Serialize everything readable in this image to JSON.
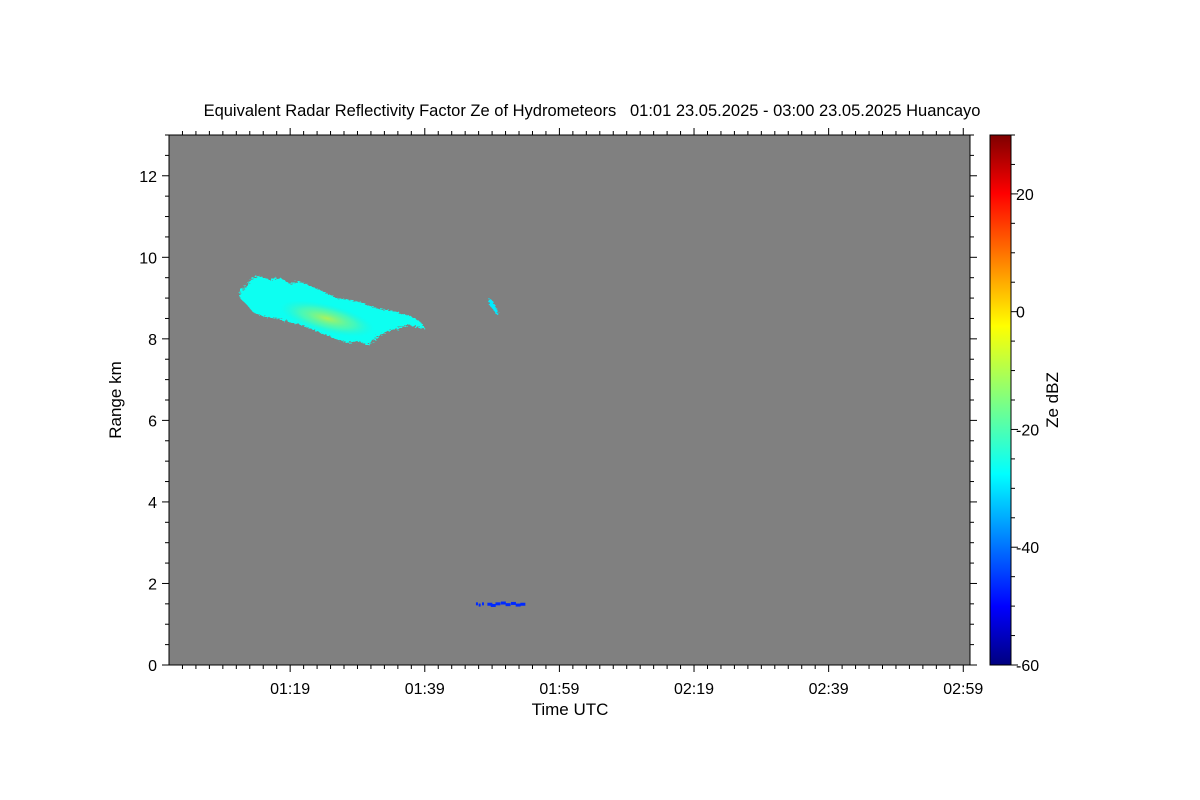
{
  "chart_data": {
    "type": "heatmap",
    "title": "Equivalent Radar Reflectivity Factor Ze of Hydrometeors   01:01 23.05.2025 - 03:00 23.05.2025 Huancayo",
    "xlabel": "Time UTC",
    "ylabel": "Range km",
    "colorbar_label": "Ze dBZ",
    "background_color": "#808080",
    "x_unit": "minutes after 01:00 UTC",
    "xlim": [
      1,
      120
    ],
    "ylim": [
      0,
      13
    ],
    "x_ticks": [
      {
        "label": "01:19",
        "value": 19
      },
      {
        "label": "01:39",
        "value": 39
      },
      {
        "label": "01:59",
        "value": 59
      },
      {
        "label": "02:19",
        "value": 79
      },
      {
        "label": "02:39",
        "value": 99
      },
      {
        "label": "02:59",
        "value": 119
      }
    ],
    "y_ticks": [
      {
        "label": "0",
        "value": 0
      },
      {
        "label": "2",
        "value": 2
      },
      {
        "label": "4",
        "value": 4
      },
      {
        "label": "6",
        "value": 6
      },
      {
        "label": "8",
        "value": 8
      },
      {
        "label": "10",
        "value": 10
      },
      {
        "label": "12",
        "value": 12
      }
    ],
    "colorbar": {
      "range": [
        -60,
        30
      ],
      "ticks": [
        {
          "label": "20",
          "value": 20
        },
        {
          "label": "0",
          "value": 0
        },
        {
          "label": "-20",
          "value": -20
        },
        {
          "label": "-40",
          "value": -40
        },
        {
          "label": "-60",
          "value": -60
        }
      ],
      "colormap": "jet"
    },
    "echo_regions": [
      {
        "name": "ice cloud",
        "time_range": [
          11.5,
          39.0
        ],
        "range_km": [
          7.8,
          9.6
        ],
        "max_ze_dbz": -10,
        "typical_ze_dbz": -25,
        "outline": [
          [
            11.5,
            9.15
          ],
          [
            12.5,
            9.3
          ],
          [
            13.5,
            9.5
          ],
          [
            14.5,
            9.55
          ],
          [
            16,
            9.45
          ],
          [
            17.5,
            9.5
          ],
          [
            19,
            9.35
          ],
          [
            20.5,
            9.4
          ],
          [
            22,
            9.3
          ],
          [
            24,
            9.15
          ],
          [
            26,
            9.0
          ],
          [
            28,
            8.95
          ],
          [
            29.5,
            8.9
          ],
          [
            31,
            8.8
          ],
          [
            32.5,
            8.72
          ],
          [
            34,
            8.7
          ],
          [
            35.5,
            8.62
          ],
          [
            37,
            8.55
          ],
          [
            38.5,
            8.4
          ],
          [
            39,
            8.25
          ],
          [
            38,
            8.28
          ],
          [
            36.5,
            8.35
          ],
          [
            35,
            8.25
          ],
          [
            33.5,
            8.2
          ],
          [
            32,
            8.05
          ],
          [
            30.5,
            7.85
          ],
          [
            29,
            7.95
          ],
          [
            28,
            7.9
          ],
          [
            26.5,
            7.95
          ],
          [
            25,
            8.05
          ],
          [
            23.5,
            8.15
          ],
          [
            22,
            8.25
          ],
          [
            20.5,
            8.35
          ],
          [
            19,
            8.4
          ],
          [
            17,
            8.5
          ],
          [
            15,
            8.55
          ],
          [
            13.5,
            8.65
          ],
          [
            12.5,
            8.85
          ],
          [
            11.5,
            9.0
          ]
        ],
        "core": {
          "center": [
            24.5,
            8.5
          ],
          "ze_dbz": -12
        }
      },
      {
        "name": "small ice patch",
        "time_range": [
          48.5,
          50.0
        ],
        "range_km": [
          8.6,
          9.0
        ],
        "typical_ze_dbz": -28,
        "outline": [
          [
            48.5,
            9.0
          ],
          [
            49.0,
            8.95
          ],
          [
            50.0,
            8.65
          ],
          [
            49.6,
            8.6
          ],
          [
            49.0,
            8.75
          ],
          [
            48.5,
            8.85
          ]
        ]
      },
      {
        "name": "low weak echo",
        "time_range": [
          46.5,
          53.5
        ],
        "range_km": [
          1.42,
          1.55
        ],
        "typical_ze_dbz": -45,
        "segments": [
          [
            46.6,
            1.5
          ],
          [
            47.0,
            1.47
          ],
          [
            47.5,
            1.5
          ],
          [
            48.3,
            1.49
          ],
          [
            48.8,
            1.46
          ],
          [
            49.5,
            1.5
          ],
          [
            50.3,
            1.52
          ],
          [
            51.0,
            1.48
          ],
          [
            51.8,
            1.51
          ],
          [
            52.5,
            1.47
          ],
          [
            53.2,
            1.49
          ]
        ]
      }
    ]
  }
}
